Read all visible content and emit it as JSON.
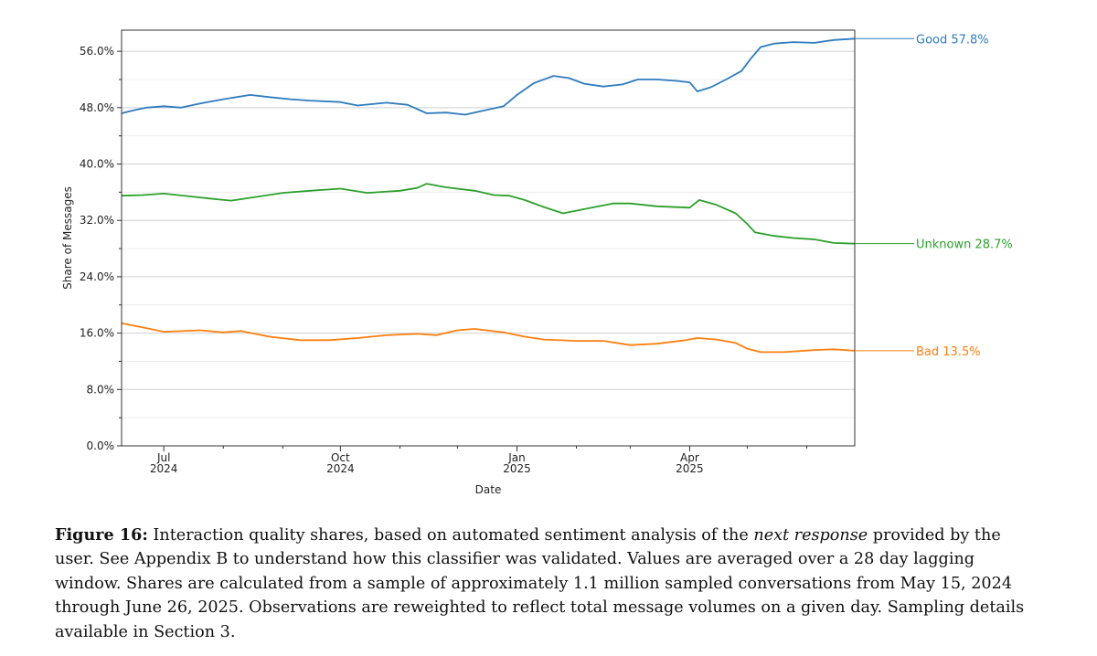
{
  "chart_data": {
    "type": "line",
    "x_axis": {
      "label": "Date",
      "range": [
        "2024-06-09",
        "2025-06-26"
      ],
      "ticks": [
        {
          "date": "2024-07-01",
          "line1": "Jul",
          "line2": "2024"
        },
        {
          "date": "2024-10-01",
          "line1": "Oct",
          "line2": "2024"
        },
        {
          "date": "2025-01-01",
          "line1": "Jan",
          "line2": "2025"
        },
        {
          "date": "2025-04-01",
          "line1": "Apr",
          "line2": "2025"
        }
      ],
      "minor_ticks": [
        "2024-08-01",
        "2024-09-01",
        "2024-11-01",
        "2024-12-01",
        "2025-02-01",
        "2025-03-01",
        "2025-05-01",
        "2025-06-01"
      ]
    },
    "y_axis": {
      "label": "Share of Messages",
      "min": 0,
      "max": 59,
      "ticks": [
        {
          "value": 0,
          "label": "0.0%"
        },
        {
          "value": 8,
          "label": "8.0%"
        },
        {
          "value": 16,
          "label": "16.0%"
        },
        {
          "value": 24,
          "label": "24.0%"
        },
        {
          "value": 32,
          "label": "32.0%"
        },
        {
          "value": 40,
          "label": "40.0%"
        },
        {
          "value": 48,
          "label": "48.0%"
        },
        {
          "value": 56,
          "label": "56.0%"
        }
      ],
      "minor_gridlines": [
        4,
        12,
        20,
        28,
        36,
        44,
        52
      ]
    },
    "series": [
      {
        "name": "Good",
        "end_label": "Good  57.8%",
        "color": "#2e7bbf",
        "points": [
          [
            "2024-06-09",
            47.2
          ],
          [
            "2024-06-15",
            47.6
          ],
          [
            "2024-06-22",
            48.0
          ],
          [
            "2024-07-01",
            48.2
          ],
          [
            "2024-07-10",
            48.0
          ],
          [
            "2024-07-20",
            48.6
          ],
          [
            "2024-08-01",
            49.2
          ],
          [
            "2024-08-15",
            49.8
          ],
          [
            "2024-08-25",
            49.5
          ],
          [
            "2024-09-05",
            49.2
          ],
          [
            "2024-09-15",
            49.0
          ],
          [
            "2024-10-01",
            48.8
          ],
          [
            "2024-10-10",
            48.3
          ],
          [
            "2024-10-25",
            48.7
          ],
          [
            "2024-11-05",
            48.4
          ],
          [
            "2024-11-15",
            47.2
          ],
          [
            "2024-11-25",
            47.3
          ],
          [
            "2024-12-05",
            47.0
          ],
          [
            "2024-12-15",
            47.6
          ],
          [
            "2024-12-25",
            48.2
          ],
          [
            "2025-01-01",
            49.8
          ],
          [
            "2025-01-10",
            51.5
          ],
          [
            "2025-01-20",
            52.5
          ],
          [
            "2025-01-28",
            52.2
          ],
          [
            "2025-02-05",
            51.4
          ],
          [
            "2025-02-15",
            51.0
          ],
          [
            "2025-02-25",
            51.3
          ],
          [
            "2025-03-05",
            52.0
          ],
          [
            "2025-03-15",
            52.0
          ],
          [
            "2025-03-25",
            51.8
          ],
          [
            "2025-04-01",
            51.6
          ],
          [
            "2025-04-05",
            50.3
          ],
          [
            "2025-04-12",
            50.9
          ],
          [
            "2025-04-20",
            52.0
          ],
          [
            "2025-04-28",
            53.2
          ],
          [
            "2025-05-03",
            55.0
          ],
          [
            "2025-05-08",
            56.6
          ],
          [
            "2025-05-15",
            57.1
          ],
          [
            "2025-05-25",
            57.3
          ],
          [
            "2025-06-05",
            57.2
          ],
          [
            "2025-06-15",
            57.6
          ],
          [
            "2025-06-26",
            57.8
          ]
        ]
      },
      {
        "name": "Unknown",
        "end_label": "Unknown  28.7%",
        "color": "#2ca02c",
        "points": [
          [
            "2024-06-09",
            35.5
          ],
          [
            "2024-06-20",
            35.6
          ],
          [
            "2024-07-01",
            35.8
          ],
          [
            "2024-07-15",
            35.4
          ],
          [
            "2024-07-25",
            35.1
          ],
          [
            "2024-08-05",
            34.8
          ],
          [
            "2024-08-15",
            35.2
          ],
          [
            "2024-09-01",
            35.9
          ],
          [
            "2024-09-15",
            36.2
          ],
          [
            "2024-10-01",
            36.5
          ],
          [
            "2024-10-15",
            35.9
          ],
          [
            "2024-11-01",
            36.2
          ],
          [
            "2024-11-10",
            36.6
          ],
          [
            "2024-11-15",
            37.2
          ],
          [
            "2024-11-25",
            36.7
          ],
          [
            "2024-12-10",
            36.2
          ],
          [
            "2024-12-20",
            35.6
          ],
          [
            "2024-12-28",
            35.5
          ],
          [
            "2025-01-05",
            34.9
          ],
          [
            "2025-01-15",
            33.9
          ],
          [
            "2025-01-25",
            33.0
          ],
          [
            "2025-02-05",
            33.6
          ],
          [
            "2025-02-20",
            34.4
          ],
          [
            "2025-03-01",
            34.4
          ],
          [
            "2025-03-15",
            34.0
          ],
          [
            "2025-04-01",
            33.8
          ],
          [
            "2025-04-06",
            34.9
          ],
          [
            "2025-04-15",
            34.2
          ],
          [
            "2025-04-25",
            33.0
          ],
          [
            "2025-05-01",
            31.5
          ],
          [
            "2025-05-05",
            30.3
          ],
          [
            "2025-05-15",
            29.8
          ],
          [
            "2025-05-25",
            29.5
          ],
          [
            "2025-06-05",
            29.3
          ],
          [
            "2025-06-15",
            28.8
          ],
          [
            "2025-06-26",
            28.7
          ]
        ]
      },
      {
        "name": "Bad",
        "end_label": "Bad  13.5%",
        "color": "#ff7f0e",
        "points": [
          [
            "2024-06-09",
            17.4
          ],
          [
            "2024-06-20",
            16.8
          ],
          [
            "2024-07-01",
            16.2
          ],
          [
            "2024-07-20",
            16.4
          ],
          [
            "2024-08-01",
            16.1
          ],
          [
            "2024-08-10",
            16.3
          ],
          [
            "2024-08-25",
            15.5
          ],
          [
            "2024-09-10",
            15.0
          ],
          [
            "2024-09-25",
            15.0
          ],
          [
            "2024-10-10",
            15.3
          ],
          [
            "2024-10-25",
            15.7
          ],
          [
            "2024-11-10",
            15.9
          ],
          [
            "2024-11-20",
            15.7
          ],
          [
            "2024-12-01",
            16.4
          ],
          [
            "2024-12-10",
            16.6
          ],
          [
            "2024-12-25",
            16.1
          ],
          [
            "2025-01-05",
            15.5
          ],
          [
            "2025-01-15",
            15.1
          ],
          [
            "2025-02-01",
            14.9
          ],
          [
            "2025-02-15",
            14.9
          ],
          [
            "2025-03-01",
            14.3
          ],
          [
            "2025-03-15",
            14.5
          ],
          [
            "2025-03-30",
            15.0
          ],
          [
            "2025-04-05",
            15.3
          ],
          [
            "2025-04-15",
            15.1
          ],
          [
            "2025-04-25",
            14.6
          ],
          [
            "2025-05-01",
            13.8
          ],
          [
            "2025-05-08",
            13.3
          ],
          [
            "2025-05-20",
            13.3
          ],
          [
            "2025-06-05",
            13.6
          ],
          [
            "2025-06-15",
            13.7
          ],
          [
            "2025-06-26",
            13.5
          ]
        ]
      }
    ]
  },
  "caption": {
    "label": "Figure 16:",
    "text_before": " Interaction quality shares, based on automated sentiment analysis of the ",
    "emphasis": "next response",
    "text_after": " provided by the user. See Appendix B to understand how this classifier was validated. Values are averaged over a 28 day lagging window. Shares are calculated from a sample of approximately 1.1 million sampled conversations from May 15, 2024 through June 26, 2025. Observations are reweighted to reflect total message volumes on a given day. Sampling details available in Section 3."
  }
}
